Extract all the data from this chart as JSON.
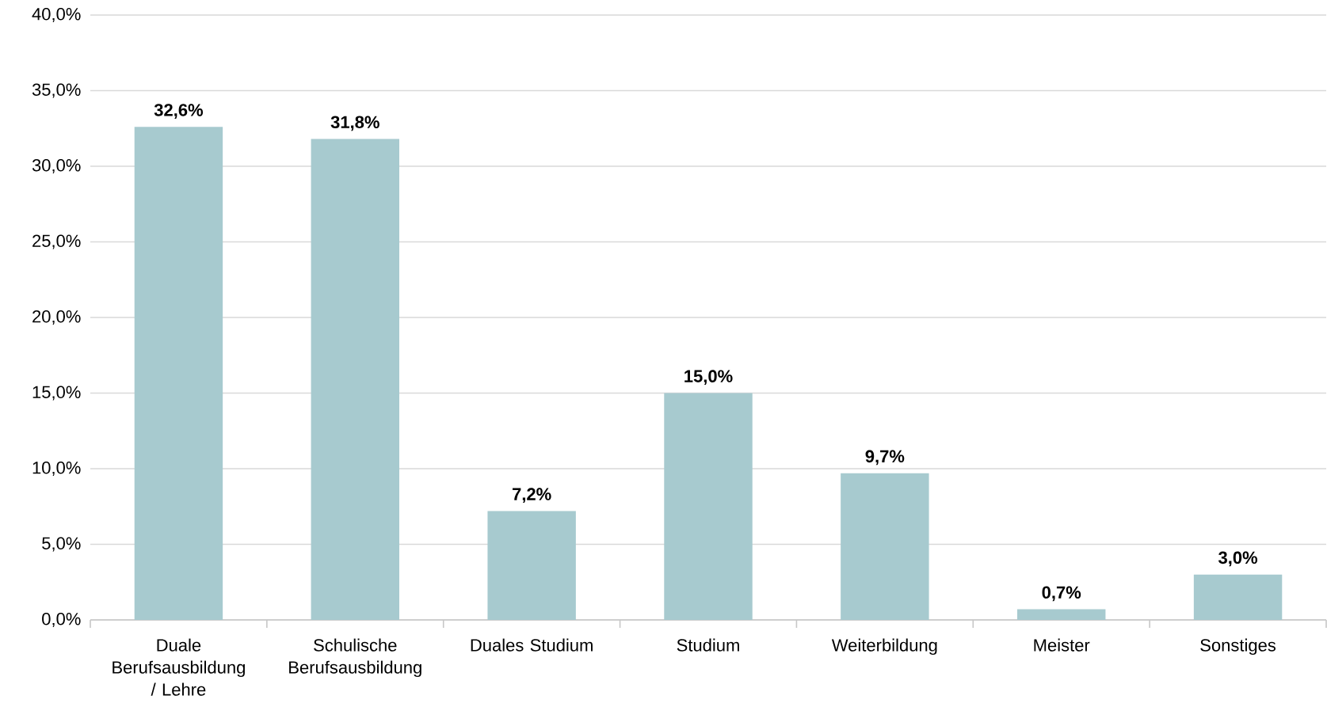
{
  "chart_data": {
    "type": "bar",
    "categories": [
      "Duale Berufsausbildung / Lehre",
      "Schulische Berufsausbildung",
      "Duales Studium",
      "Studium",
      "Weiterbildung",
      "Meister",
      "Sonstiges"
    ],
    "values": [
      32.6,
      31.8,
      7.2,
      15.0,
      9.7,
      0.7,
      3.0
    ],
    "value_labels": [
      "32,6%",
      "31,8%",
      "7,2%",
      "15,0%",
      "9,7%",
      "0,7%",
      "3,0%"
    ],
    "color": "#a7cacf",
    "ylim": [
      0,
      40
    ],
    "yticks": [
      {
        "value": 0,
        "label": "0,0%"
      },
      {
        "value": 5,
        "label": "5,0%"
      },
      {
        "value": 10,
        "label": "10,0%"
      },
      {
        "value": 15,
        "label": "15,0%"
      },
      {
        "value": 20,
        "label": "20,0%"
      },
      {
        "value": 25,
        "label": "25,0%"
      },
      {
        "value": 30,
        "label": "30,0%"
      },
      {
        "value": 35,
        "label": "35,0%"
      },
      {
        "value": 40,
        "label": "40,0%"
      }
    ],
    "grid": "y"
  }
}
